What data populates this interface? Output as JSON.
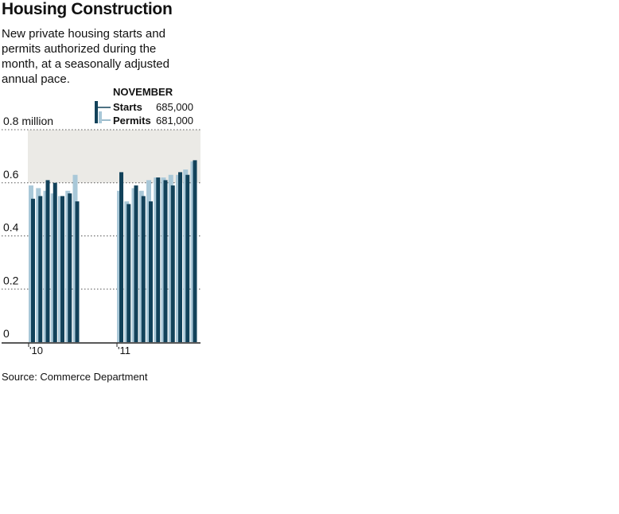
{
  "header": {
    "title": "Housing Construction",
    "subtitle": "New private housing starts and permits authorized during the month, at a seasonally adjusted annual pace."
  },
  "legend": {
    "heading": "NOVEMBER",
    "starts_label": "Starts",
    "starts_value": "685,000",
    "permits_label": "Permits",
    "permits_value": "681,000"
  },
  "footer": {
    "source": "Source: Commerce Department"
  },
  "colors": {
    "starts": "#12425a",
    "permits": "#a9c8d8",
    "highlight_band": "#ebeae6",
    "axis": "#222222",
    "grid": "#555555"
  },
  "chart_data": {
    "type": "bar",
    "title": "Housing Construction",
    "ylabel": "",
    "xlabel": "",
    "y_unit": "million",
    "ylim": [
      0,
      0.8
    ],
    "yticks": [
      0,
      0.2,
      0.4,
      0.6,
      0.8
    ],
    "ytick_labels": [
      "0",
      "0.2",
      "0.4",
      "0.6",
      "0.8 million"
    ],
    "highlight_range": [
      0.6,
      0.8
    ],
    "categories": [
      "Jan 2010",
      "Feb 2010",
      "Mar 2010",
      "Apr 2010",
      "May 2010",
      "Jun 2010",
      "Jul 2010",
      "Aug 2010",
      "Sep 2010",
      "Oct 2010",
      "Nov 2010",
      "Dec 2010",
      "Jan 2011",
      "Feb 2011",
      "Mar 2011",
      "Apr 2011",
      "May 2011",
      "Jun 2011",
      "Jul 2011",
      "Aug 2011",
      "Sep 2011",
      "Oct 2011",
      "Nov 2011"
    ],
    "x_labels": [
      {
        "index": 0,
        "label": "'10"
      },
      {
        "index": 12,
        "label": "'11"
      }
    ],
    "series": [
      {
        "name": "Starts",
        "values": [
          0.54,
          0.55,
          0.61,
          0.6,
          0.55,
          0.56,
          0.53,
          null,
          null,
          null,
          null,
          null,
          0.64,
          0.52,
          0.59,
          0.55,
          0.53,
          0.62,
          0.61,
          0.59,
          0.64,
          0.63,
          0.685
        ]
      },
      {
        "name": "Permits",
        "values": [
          0.59,
          0.58,
          0.57,
          0.56,
          0.55,
          0.57,
          0.63,
          null,
          null,
          null,
          null,
          null,
          0.57,
          0.53,
          0.58,
          0.57,
          0.61,
          0.62,
          0.62,
          0.63,
          0.63,
          0.65,
          0.681
        ]
      }
    ]
  }
}
